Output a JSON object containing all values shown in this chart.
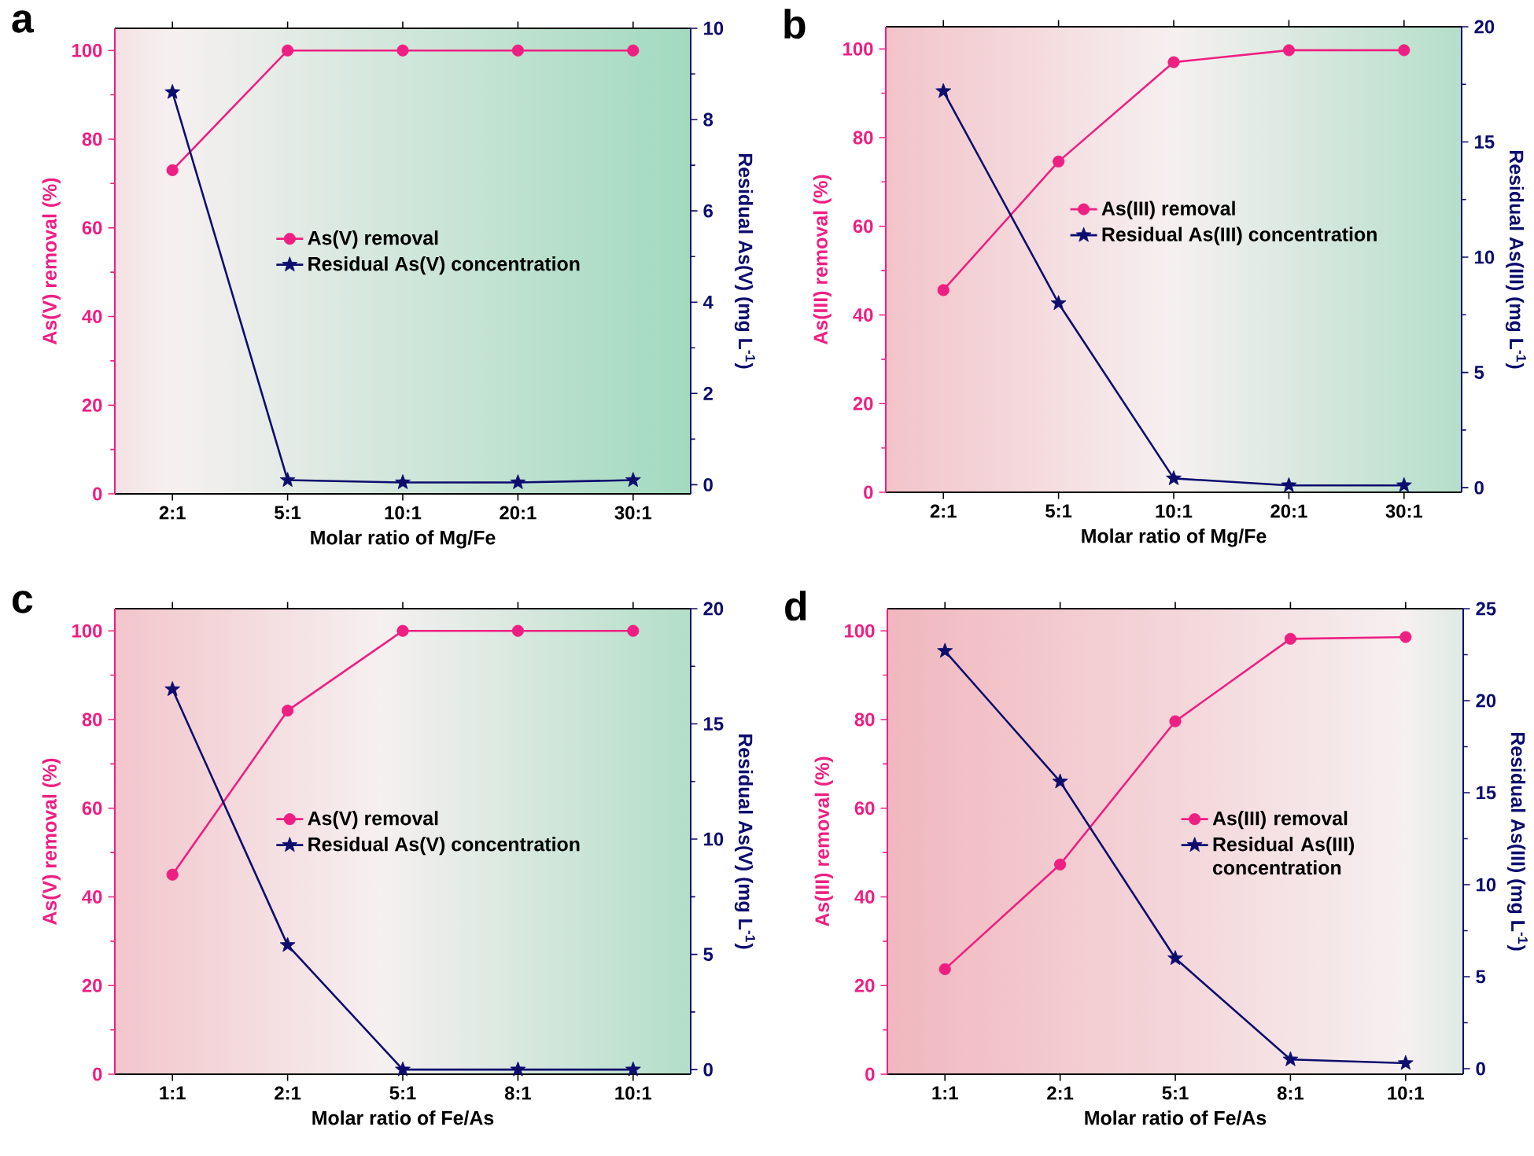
{
  "chart_data": [
    {
      "type": "line",
      "title": "a",
      "categories": [
        "2:1",
        "5:1",
        "10:1",
        "20:1",
        "30:1"
      ],
      "xlabel": "Molar ratio of Mg/Fe",
      "ylabel": "As(V) removal (%)",
      "y2label": "Residual As(V) (mg L$^{-1}$)",
      "ylim": [
        0,
        105
      ],
      "yticks": [
        0,
        20,
        40,
        60,
        80,
        100
      ],
      "y2lim": [
        -0.2,
        10
      ],
      "y2ticks": [
        0,
        2,
        4,
        6,
        8,
        10
      ],
      "legend": "right",
      "series": [
        {
          "name": "As(V) removal",
          "color": "#ee1f82",
          "marker": "circle",
          "values": [
            73,
            100,
            100,
            100,
            100
          ]
        },
        {
          "name": "Residual As(V) concentration",
          "color": "#0d0d6e",
          "marker": "star",
          "axis": "y2",
          "values": [
            8.6,
            0.1,
            0.05,
            0.05,
            0.1
          ]
        }
      ]
    },
    {
      "type": "line",
      "title": "b",
      "categories": [
        "2:1",
        "5:1",
        "10:1",
        "20:1",
        "30:1"
      ],
      "xlabel": "Molar ratio of Mg/Fe",
      "ylabel": "As(III) removal (%)",
      "y2label": "Residual As(III) (mg L$^{-1}$)",
      "ylim": [
        0,
        105
      ],
      "yticks": [
        0,
        20,
        40,
        60,
        80,
        100
      ],
      "y2lim": [
        -0.2,
        20
      ],
      "y2ticks": [
        0,
        5,
        10,
        15,
        20
      ],
      "legend": "right",
      "series": [
        {
          "name": "As(III) removal",
          "color": "#ee1f82",
          "marker": "circle",
          "values": [
            45.6,
            74.6,
            97,
            99.7,
            99.7
          ]
        },
        {
          "name": "Residual As(III) concentration",
          "color": "#0d0d6e",
          "marker": "star",
          "axis": "y2",
          "values": [
            17.2,
            8.0,
            0.4,
            0.1,
            0.1
          ]
        }
      ]
    },
    {
      "type": "line",
      "title": "c",
      "categories": [
        "1:1",
        "2:1",
        "5:1",
        "8:1",
        "10:1"
      ],
      "xlabel": "Molar ratio of Fe/As",
      "ylabel": "As(V) removal (%)",
      "y2label": "Residual As(V) (mg L$^{-1}$)",
      "ylim": [
        0,
        105
      ],
      "yticks": [
        0,
        20,
        40,
        60,
        80,
        100
      ],
      "y2lim": [
        -0.2,
        20
      ],
      "y2ticks": [
        0,
        5,
        10,
        15,
        20
      ],
      "legend": "right",
      "series": [
        {
          "name": "As(V) removal",
          "color": "#ee1f82",
          "marker": "circle",
          "values": [
            45,
            82,
            100,
            100,
            100
          ]
        },
        {
          "name": "Residual As(V) concentration",
          "color": "#0d0d6e",
          "marker": "star",
          "axis": "y2",
          "values": [
            16.5,
            5.4,
            0,
            0,
            0
          ]
        }
      ]
    },
    {
      "type": "line",
      "title": "d",
      "categories": [
        "1:1",
        "2:1",
        "5:1",
        "8:1",
        "10:1"
      ],
      "xlabel": "Molar ratio of Fe/As",
      "ylabel": "As(III) removal (%)",
      "y2label": "Residual As(III) (mg L$^{-1}$)",
      "ylim": [
        0,
        105
      ],
      "yticks": [
        0,
        20,
        40,
        60,
        80,
        100
      ],
      "y2lim": [
        -0.3,
        25
      ],
      "y2ticks": [
        0,
        5,
        10,
        15,
        20,
        25
      ],
      "legend": "right",
      "series": [
        {
          "name": "As(III) removal",
          "color": "#ee1f82",
          "marker": "circle",
          "values": [
            23.7,
            47.3,
            79.6,
            98.2,
            98.6
          ]
        },
        {
          "name": "Residual As(III) concentration",
          "color": "#0d0d6e",
          "marker": "star",
          "axis": "y2",
          "values": [
            22.7,
            15.6,
            6.0,
            0.5,
            0.3
          ]
        }
      ]
    }
  ]
}
